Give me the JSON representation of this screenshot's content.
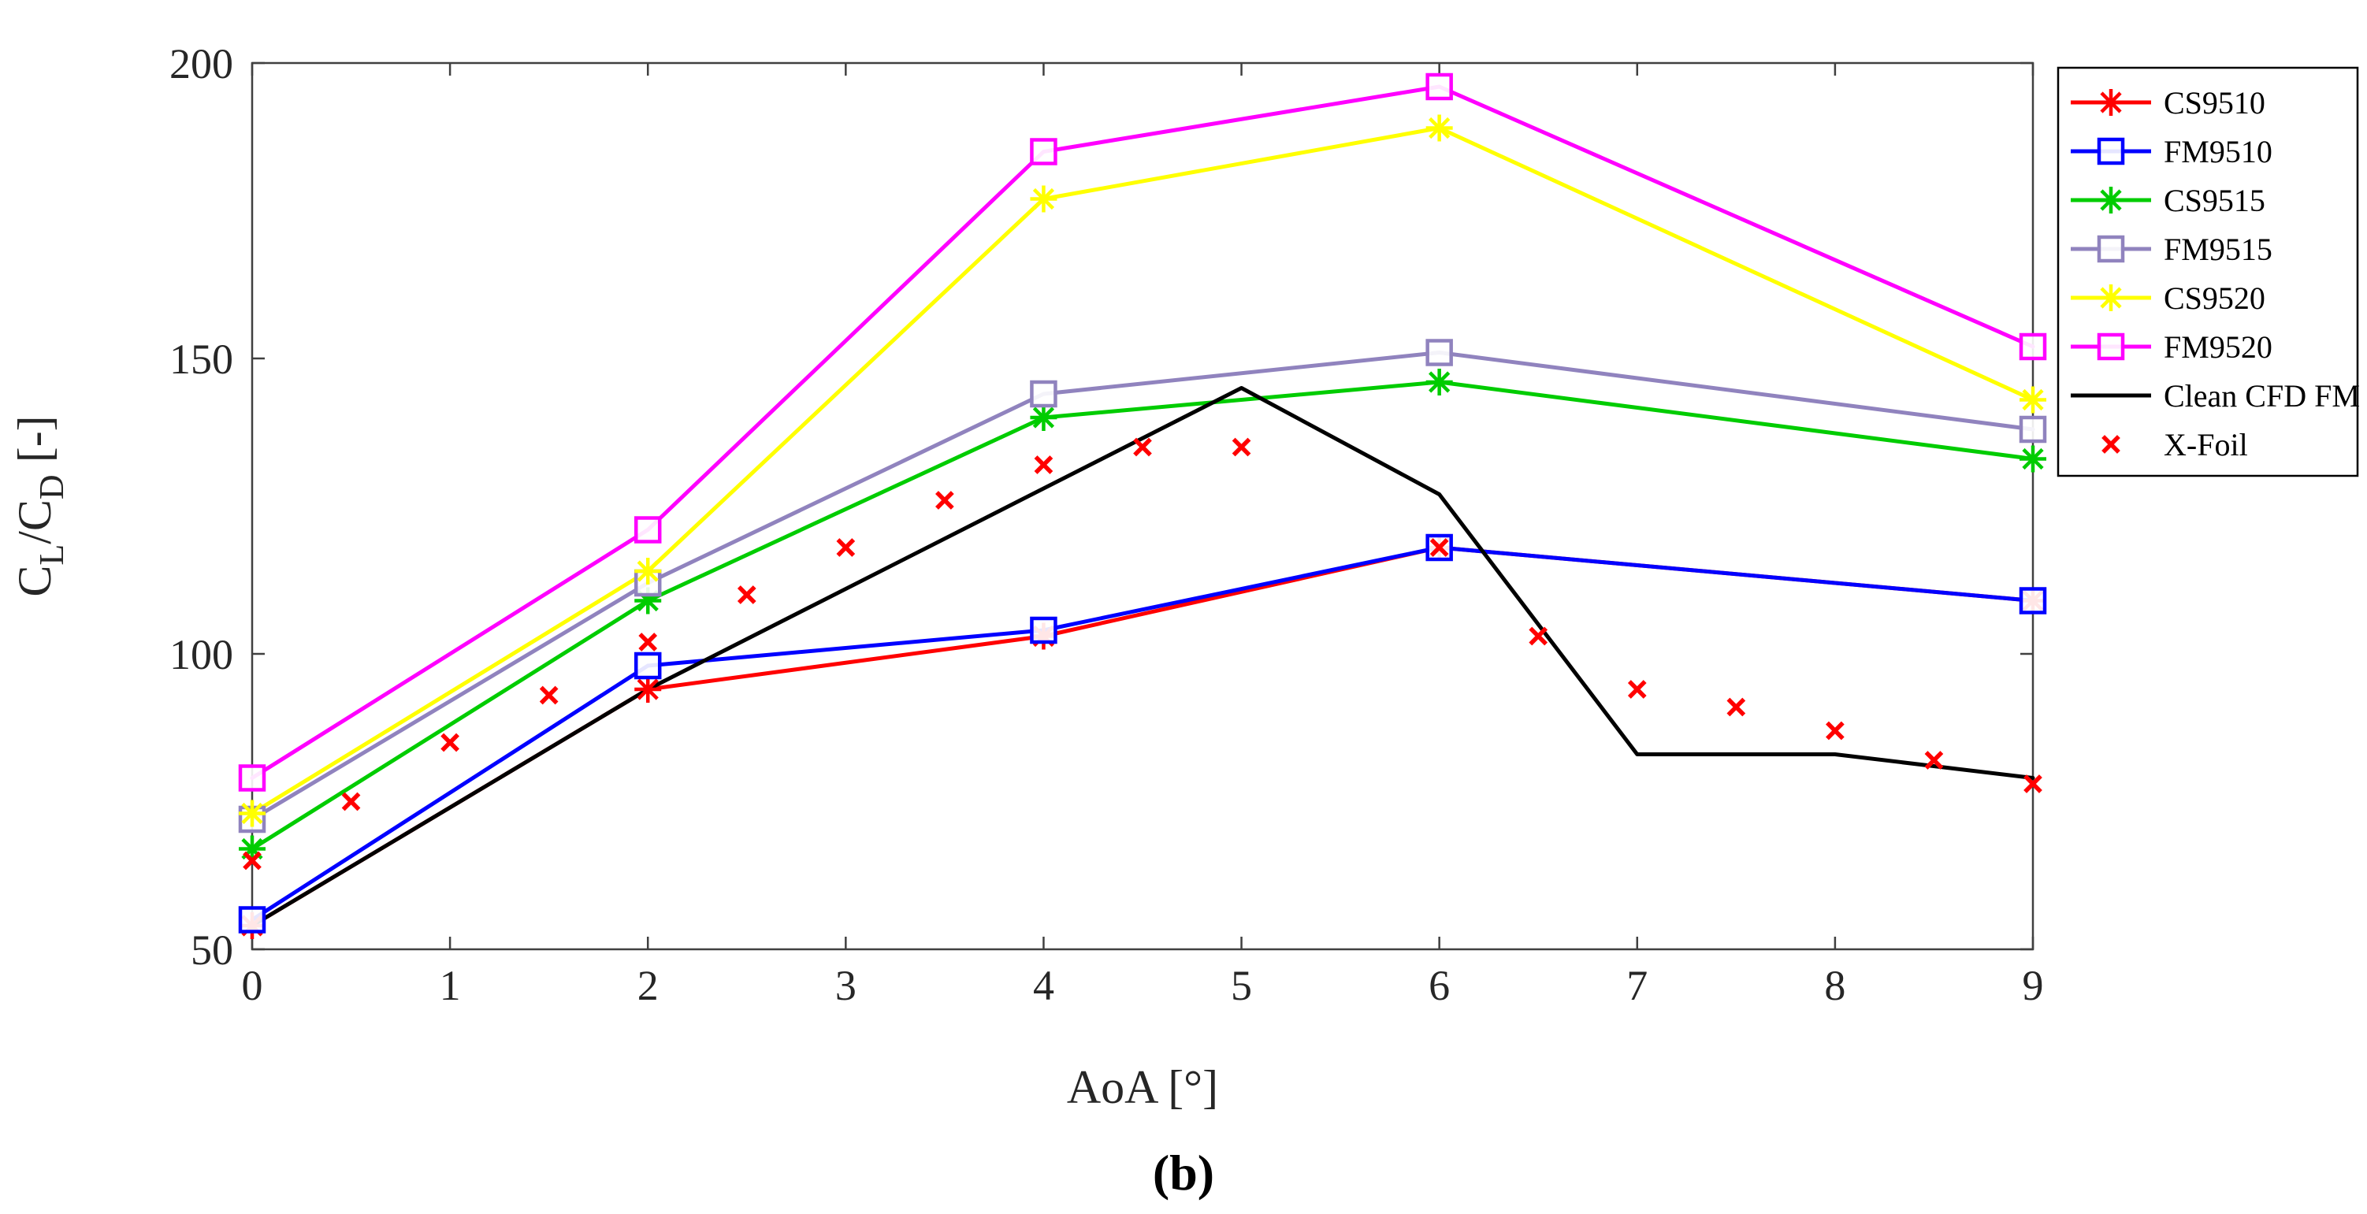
{
  "figure": {
    "caption": "(b)"
  },
  "chart_data": {
    "type": "line",
    "title": "",
    "xlabel": "AoA [°]",
    "ylabel": "C_L/C_D [-]",
    "ylabel_parts": [
      {
        "text": "C"
      },
      {
        "text": "L",
        "sub": true
      },
      {
        "text": "/C"
      },
      {
        "text": "D",
        "sub": true
      },
      {
        "text": " [-]"
      }
    ],
    "xlim": [
      0,
      9
    ],
    "ylim": [
      50,
      200
    ],
    "xticks": [
      0,
      1,
      2,
      3,
      4,
      5,
      6,
      7,
      8,
      9
    ],
    "yticks": [
      50,
      100,
      150,
      200
    ],
    "grid": false,
    "legend_position": "outside-top-right",
    "axis_color": "#404040",
    "text_color": "#262626",
    "series": [
      {
        "name": "CS9510",
        "color": "#FF0000",
        "marker": "asterisk",
        "line": true,
        "x": [
          0,
          2,
          4,
          6,
          9
        ],
        "y": [
          54,
          94,
          103,
          118,
          109
        ]
      },
      {
        "name": "FM9510",
        "color": "#0000FF",
        "marker": "square",
        "line": true,
        "x": [
          0,
          2,
          4,
          6,
          9
        ],
        "y": [
          55,
          98,
          104,
          118,
          109
        ]
      },
      {
        "name": "CS9515",
        "color": "#00CC00",
        "marker": "asterisk",
        "line": true,
        "x": [
          0,
          2,
          4,
          6,
          9
        ],
        "y": [
          67,
          109,
          140,
          146,
          133
        ]
      },
      {
        "name": "FM9515",
        "color": "#9083BE",
        "marker": "square",
        "line": true,
        "x": [
          0,
          2,
          4,
          6,
          9
        ],
        "y": [
          72,
          112,
          144,
          151,
          138
        ]
      },
      {
        "name": "CS9520",
        "color": "#FFFF00",
        "marker": "asterisk",
        "line": true,
        "x": [
          0,
          2,
          4,
          6,
          9
        ],
        "y": [
          73,
          114,
          177,
          189,
          143
        ]
      },
      {
        "name": "FM9520",
        "color": "#FF00FF",
        "marker": "square",
        "line": true,
        "x": [
          0,
          2,
          4,
          6,
          9
        ],
        "y": [
          79,
          121,
          185,
          196,
          152
        ]
      },
      {
        "name": "Clean CFD FM",
        "color": "#000000",
        "marker": "none",
        "line": true,
        "x": [
          0,
          2,
          5,
          6,
          7,
          8,
          9
        ],
        "y": [
          54,
          94,
          145,
          127,
          83,
          83,
          79
        ]
      },
      {
        "name": "X-Foil",
        "color": "#FF0000",
        "marker": "x",
        "line": false,
        "x": [
          0,
          0.5,
          1,
          1.5,
          2,
          2.5,
          3,
          3.5,
          4,
          4.5,
          5,
          6,
          6.5,
          7,
          7.5,
          8,
          8.5,
          9
        ],
        "y": [
          65,
          75,
          85,
          93,
          102,
          110,
          118,
          126,
          132,
          135,
          135,
          118,
          103,
          94,
          91,
          87,
          82,
          78
        ]
      }
    ]
  }
}
